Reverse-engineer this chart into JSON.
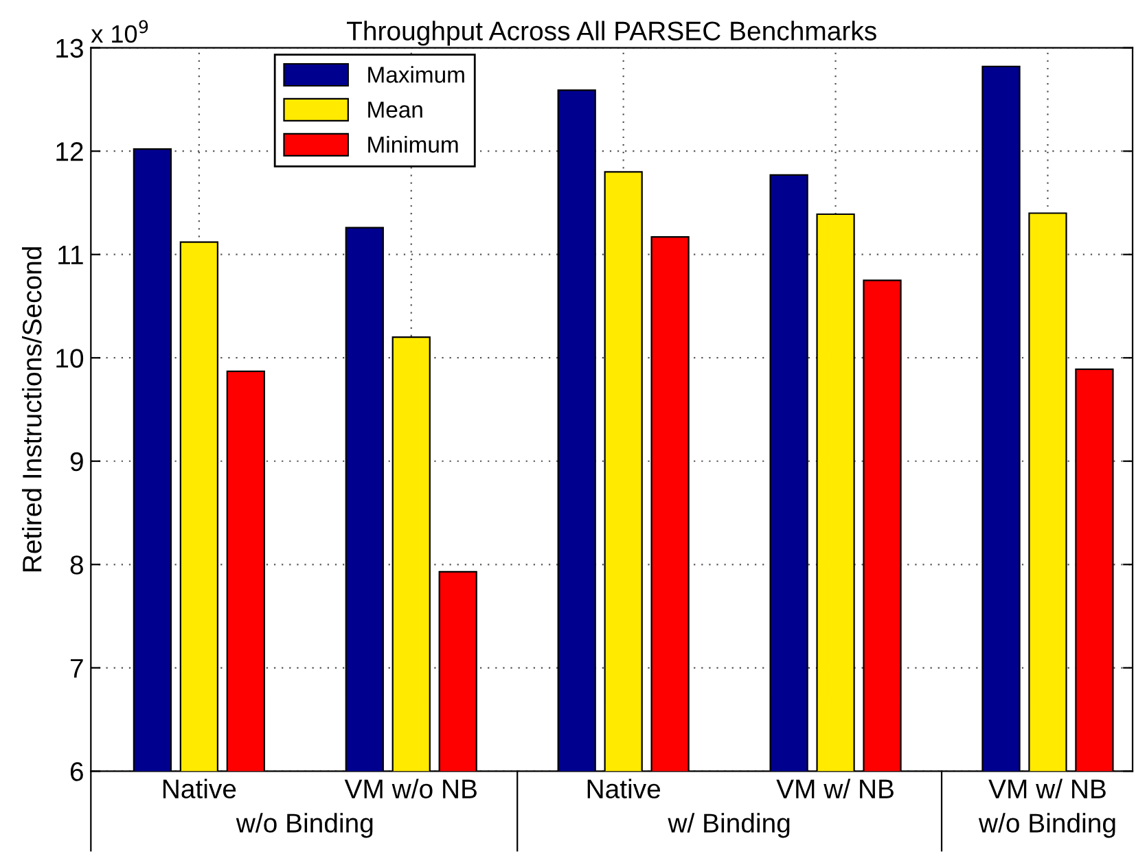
{
  "chart_data": {
    "type": "bar",
    "title": "Throughput Across All PARSEC Benchmarks",
    "ylabel": "Retired Instructions/Second",
    "categories": [
      "Native",
      "VM w/o NB",
      "Native",
      "VM w/ NB",
      "VM w/ NB"
    ],
    "series": [
      {
        "name": "Maximum",
        "color": "#00008f",
        "values": [
          12.02,
          11.26,
          12.59,
          11.77,
          12.82
        ]
      },
      {
        "name": "Mean",
        "color": "#ffea00",
        "values": [
          11.12,
          10.2,
          11.8,
          11.39,
          11.4
        ]
      },
      {
        "name": "Minimum",
        "color": "#ff0000",
        "values": [
          9.87,
          7.93,
          11.17,
          10.75,
          9.89
        ]
      }
    ],
    "annotations": [
      "x 10$^{9}$",
      "w/o Binding",
      "w/ Binding",
      "w/o Binding"
    ],
    "ylim": [
      6,
      13
    ],
    "yticks": [
      6,
      7,
      8,
      9,
      10,
      11,
      12,
      13
    ],
    "grid": true,
    "legend": "top"
  }
}
